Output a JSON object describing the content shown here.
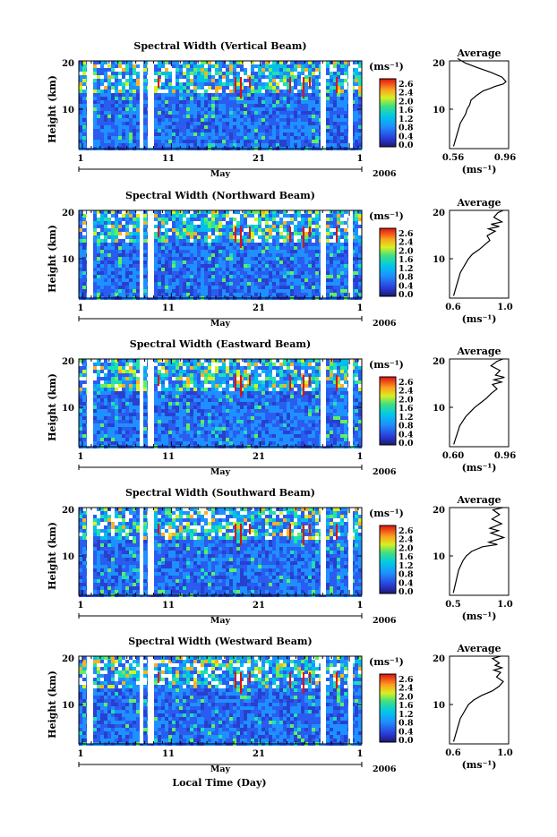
{
  "figure": {
    "x_axis_label": "Local Time (Day)",
    "month_label": "May",
    "year_label": "2006",
    "x_tick_labels": [
      "1",
      "11",
      "21",
      "1"
    ]
  },
  "chart_data": [
    {
      "type": "heatmap",
      "title": "Spectral Width (Vertical Beam)",
      "ylabel": "Height (km)",
      "yticks": [
        "20",
        "10"
      ],
      "colorbar_unit": "(ms⁻¹)",
      "colorbar_ticks": [
        "2.6",
        "2.4",
        "2.0",
        "1.6",
        "1.2",
        "0.8",
        "0.4",
        "0.0"
      ],
      "average": {
        "title": "Average",
        "xticks": [
          "0.56",
          "0.96"
        ],
        "xlim": [
          0.56,
          0.96
        ],
        "xlabel": "(ms⁻¹)",
        "yticks": [
          "20",
          "10"
        ],
        "x": [
          0.57,
          0.58,
          0.59,
          0.6,
          0.61,
          0.62,
          0.64,
          0.66,
          0.67,
          0.69,
          0.7,
          0.74,
          0.79,
          0.84,
          0.88,
          0.94,
          0.96,
          0.93,
          0.85,
          0.75,
          0.66,
          0.6
        ],
        "y": [
          2,
          3,
          4,
          5,
          6,
          7,
          8,
          9,
          10,
          11,
          12,
          13,
          14,
          14.5,
          15,
          15.5,
          16,
          17,
          18,
          19,
          20,
          21
        ]
      }
    },
    {
      "type": "heatmap",
      "title": "Spectral Width (Northward Beam)",
      "ylabel": "Height (km)",
      "yticks": [
        "20",
        "10"
      ],
      "colorbar_unit": "(ms⁻¹)",
      "colorbar_ticks": [
        "2.6",
        "2.4",
        "2.0",
        "1.6",
        "1.2",
        "0.8",
        "0.4",
        "0.0"
      ],
      "average": {
        "title": "Average",
        "xticks": [
          "0.6",
          "1.0"
        ],
        "xlim": [
          0.6,
          1.0
        ],
        "xlabel": "(ms⁻¹)",
        "yticks": [
          "20",
          "10"
        ],
        "x": [
          0.61,
          0.62,
          0.63,
          0.64,
          0.65,
          0.66,
          0.68,
          0.7,
          0.72,
          0.75,
          0.8,
          0.84,
          0.88,
          0.86,
          0.92,
          0.87,
          0.95,
          0.89,
          0.97,
          0.91,
          0.94,
          0.98
        ],
        "y": [
          2,
          3,
          4,
          5,
          6,
          7,
          8,
          9,
          10,
          11,
          12,
          13,
          14,
          15,
          16,
          16.5,
          17,
          17.5,
          18,
          19,
          20,
          20.5
        ]
      }
    },
    {
      "type": "heatmap",
      "title": "Spectral Width (Eastward Beam)",
      "ylabel": "Height (km)",
      "yticks": [
        "20",
        "10"
      ],
      "colorbar_unit": "(ms⁻¹)",
      "colorbar_ticks": [
        "2.6",
        "2.4",
        "2.0",
        "1.6",
        "1.2",
        "0.8",
        "0.4",
        "0.0"
      ],
      "average": {
        "title": "Average",
        "xticks": [
          "0.60",
          "0.96"
        ],
        "xlim": [
          0.6,
          0.96
        ],
        "xlabel": "(ms⁻¹)",
        "yticks": [
          "20",
          "10"
        ],
        "x": [
          0.61,
          0.62,
          0.63,
          0.64,
          0.65,
          0.67,
          0.69,
          0.72,
          0.75,
          0.79,
          0.83,
          0.86,
          0.9,
          0.87,
          0.93,
          0.88,
          0.95,
          0.89,
          0.92,
          0.86,
          0.9,
          0.94
        ],
        "y": [
          2,
          3,
          4,
          5,
          6,
          7,
          8,
          9,
          10,
          11,
          12,
          13,
          14,
          15,
          15.5,
          16,
          16.5,
          17,
          18,
          19,
          20,
          20.5
        ]
      }
    },
    {
      "type": "heatmap",
      "title": "Spectral Width (Southward Beam)",
      "ylabel": "Height (km)",
      "yticks": [
        "20",
        "10"
      ],
      "colorbar_unit": "(ms⁻¹)",
      "colorbar_ticks": [
        "2.6",
        "2.4",
        "2.0",
        "1.6",
        "1.2",
        "0.8",
        "0.4",
        "0.0"
      ],
      "average": {
        "title": "Average",
        "xticks": [
          "0.5",
          "1.0"
        ],
        "xlim": [
          0.5,
          1.0
        ],
        "xlabel": "(ms⁻¹)",
        "yticks": [
          "20",
          "10"
        ],
        "x": [
          0.51,
          0.52,
          0.53,
          0.54,
          0.55,
          0.56,
          0.58,
          0.6,
          0.63,
          0.68,
          0.78,
          0.92,
          0.84,
          0.98,
          0.86,
          0.93,
          0.85,
          0.96,
          0.87,
          0.94,
          0.88,
          0.97
        ],
        "y": [
          2,
          3,
          4,
          5,
          6,
          7,
          8,
          9,
          10,
          11,
          12,
          12.5,
          13,
          14,
          15,
          15.5,
          16,
          17,
          18,
          19,
          20,
          20.5
        ]
      }
    },
    {
      "type": "heatmap",
      "title": "Spectral Width (Westward Beam)",
      "ylabel": "Height (km)",
      "yticks": [
        "20",
        "10"
      ],
      "colorbar_unit": "(ms⁻¹)",
      "colorbar_ticks": [
        "2.6",
        "2.4",
        "2.0",
        "1.6",
        "1.2",
        "0.8",
        "0.4",
        "0.0"
      ],
      "average": {
        "title": "Average",
        "xticks": [
          "0.6",
          "1.0"
        ],
        "xlim": [
          0.6,
          1.0
        ],
        "xlabel": "(ms⁻¹)",
        "yticks": [
          "20",
          "10"
        ],
        "x": [
          0.61,
          0.62,
          0.63,
          0.64,
          0.65,
          0.66,
          0.68,
          0.7,
          0.72,
          0.76,
          0.82,
          0.9,
          0.95,
          0.98,
          0.93,
          0.96,
          0.91,
          0.97,
          0.92,
          0.95,
          0.9,
          0.96
        ],
        "y": [
          2,
          3,
          4,
          5,
          6,
          7,
          8,
          9,
          10,
          11,
          12,
          13,
          14,
          15,
          16,
          17,
          17.5,
          18,
          18.5,
          19,
          20,
          20.5
        ]
      }
    }
  ]
}
